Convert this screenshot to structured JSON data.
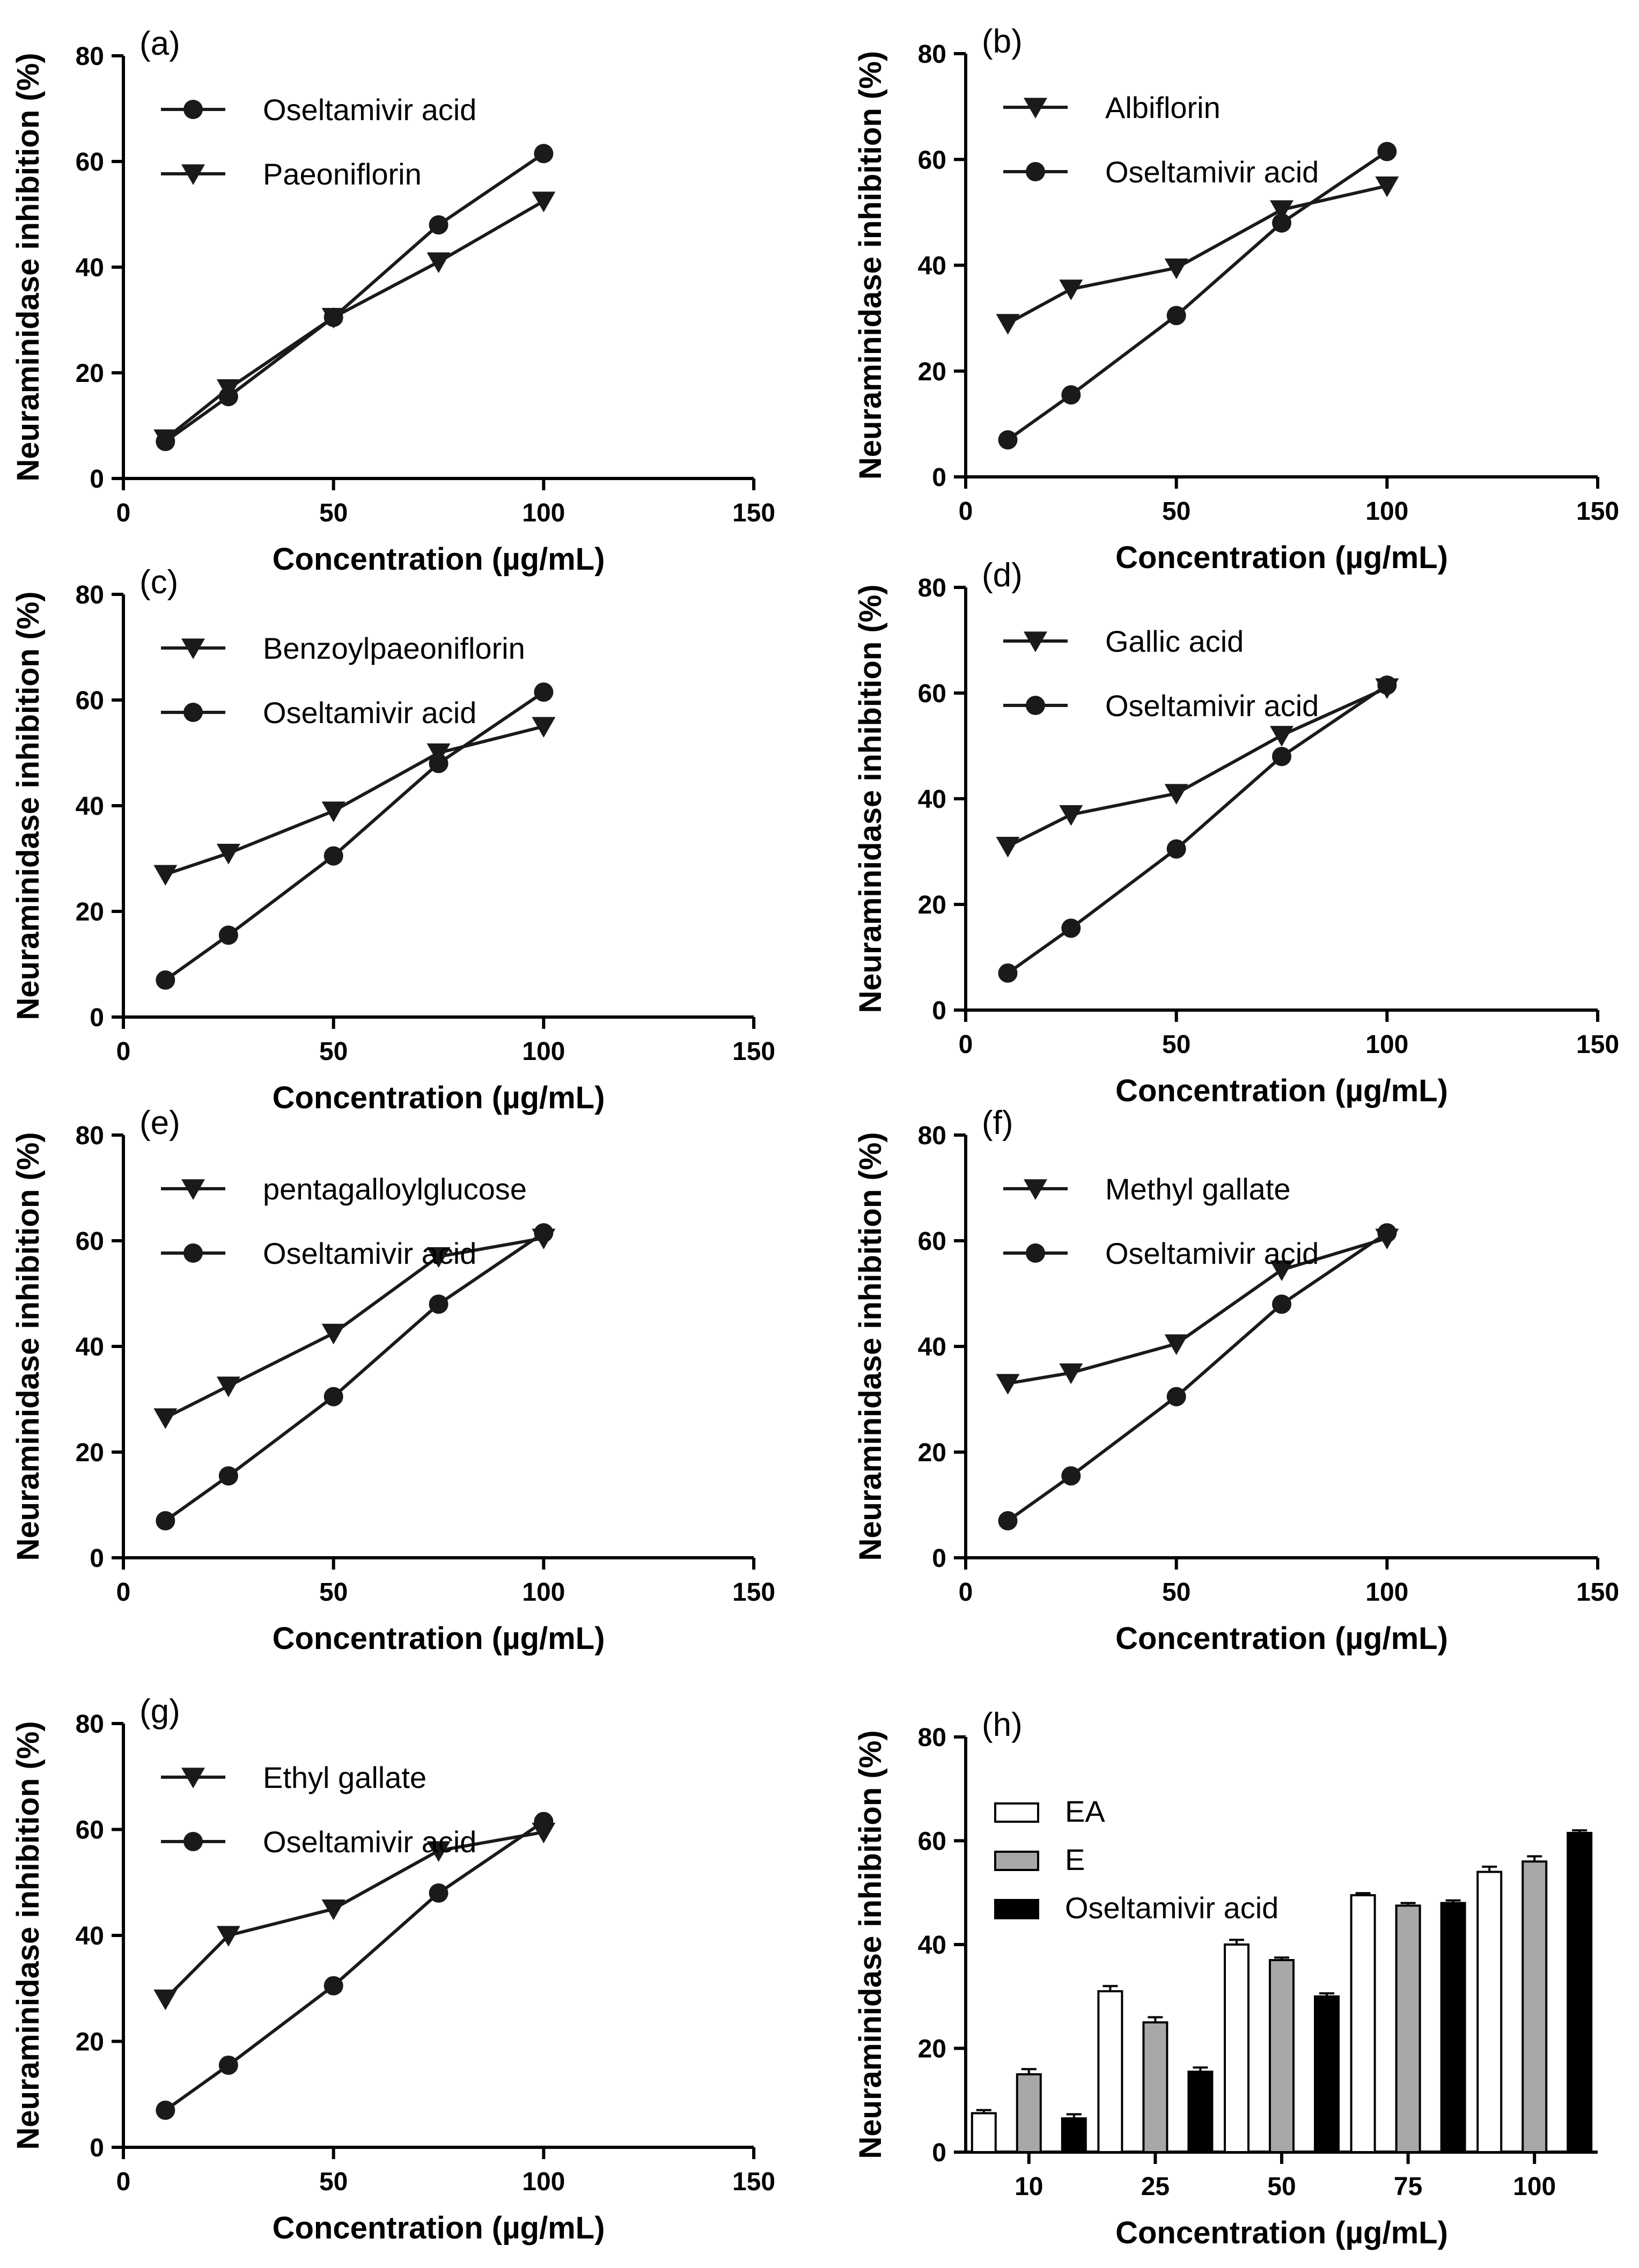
{
  "chart_data": [
    {
      "id": "a",
      "type": "line",
      "panel_label": "(a)",
      "xlabel": "Concentration (µg/mL)",
      "ylabel": "Neuraminidase inhibition (%)",
      "xlim": [
        0,
        150
      ],
      "ylim": [
        0,
        80
      ],
      "xticks": [
        "0",
        "50",
        "100",
        "150"
      ],
      "yticks": [
        "0",
        "20",
        "40",
        "60",
        "80"
      ],
      "x": [
        10,
        25,
        50,
        75,
        100
      ],
      "series": [
        {
          "name": "Oseltamivir acid",
          "marker": "circle",
          "values": [
            7,
            15.5,
            30.5,
            48,
            61.5
          ]
        },
        {
          "name": "Paeoniflorin",
          "marker": "triangle-down",
          "values": [
            7.5,
            17,
            30.5,
            41,
            52.5
          ]
        }
      ]
    },
    {
      "id": "b",
      "type": "line",
      "panel_label": "(b)",
      "xlabel": "Concentration (µg/mL)",
      "ylabel": "Neuraminidase inhibition (%)",
      "xlim": [
        0,
        150
      ],
      "ylim": [
        0,
        80
      ],
      "xticks": [
        "0",
        "50",
        "100",
        "150"
      ],
      "yticks": [
        "0",
        "20",
        "40",
        "60",
        "80"
      ],
      "x": [
        10,
        25,
        50,
        75,
        100
      ],
      "series": [
        {
          "name": "Albiflorin",
          "marker": "triangle-down",
          "values": [
            29,
            35.5,
            39.5,
            50.5,
            55
          ]
        },
        {
          "name": "Oseltamivir acid",
          "marker": "circle",
          "values": [
            7,
            15.5,
            30.5,
            48,
            61.5
          ]
        }
      ]
    },
    {
      "id": "c",
      "type": "line",
      "panel_label": "(c)",
      "xlabel": "Concentration (µg/mL)",
      "ylabel": "Neuraminidase inhibition (%)",
      "xlim": [
        0,
        150
      ],
      "ylim": [
        0,
        80
      ],
      "xticks": [
        "0",
        "50",
        "100",
        "150"
      ],
      "yticks": [
        "0",
        "20",
        "40",
        "60",
        "80"
      ],
      "x": [
        10,
        25,
        50,
        75,
        100
      ],
      "series": [
        {
          "name": "Benzoylpaeoniflorin",
          "marker": "triangle-down",
          "values": [
            27,
            31,
            39,
            50,
            55
          ]
        },
        {
          "name": "Oseltamivir acid",
          "marker": "circle",
          "values": [
            7,
            15.5,
            30.5,
            48,
            61.5
          ]
        }
      ]
    },
    {
      "id": "d",
      "type": "line",
      "panel_label": "(d)",
      "xlabel": "Concentration (µg/mL)",
      "ylabel": "Neuraminidase inhibition (%)",
      "xlim": [
        0,
        150
      ],
      "ylim": [
        0,
        80
      ],
      "xticks": [
        "0",
        "50",
        "100",
        "150"
      ],
      "yticks": [
        "0",
        "20",
        "40",
        "60",
        "80"
      ],
      "x": [
        10,
        25,
        50,
        75,
        100
      ],
      "series": [
        {
          "name": "Gallic acid",
          "marker": "triangle-down",
          "values": [
            31,
            37,
            41,
            52,
            61
          ]
        },
        {
          "name": "Oseltamivir acid",
          "marker": "circle",
          "values": [
            7,
            15.5,
            30.5,
            48,
            61.5
          ]
        }
      ]
    },
    {
      "id": "e",
      "type": "line",
      "panel_label": "(e)",
      "xlabel": "Concentration (µg/mL)",
      "ylabel": "Neuraminidase inhibition (%)",
      "xlim": [
        0,
        150
      ],
      "ylim": [
        0,
        80
      ],
      "xticks": [
        "0",
        "50",
        "100",
        "150"
      ],
      "yticks": [
        "0",
        "20",
        "40",
        "60",
        "80"
      ],
      "x": [
        10,
        25,
        50,
        75,
        100
      ],
      "series": [
        {
          "name": "pentagalloylglucose",
          "marker": "triangle-down",
          "values": [
            26.5,
            32.5,
            42.5,
            57,
            60.5
          ]
        },
        {
          "name": "Oseltamivir acid",
          "marker": "circle",
          "values": [
            7,
            15.5,
            30.5,
            48,
            61.5
          ]
        }
      ]
    },
    {
      "id": "f",
      "type": "line",
      "panel_label": "(f)",
      "xlabel": "Concentration (µg/mL)",
      "ylabel": "Neuraminidase inhibition (%)",
      "xlim": [
        0,
        150
      ],
      "ylim": [
        0,
        80
      ],
      "xticks": [
        "0",
        "50",
        "100",
        "150"
      ],
      "yticks": [
        "0",
        "20",
        "40",
        "60",
        "80"
      ],
      "x": [
        10,
        25,
        50,
        75,
        100
      ],
      "series": [
        {
          "name": "Methyl gallate",
          "marker": "triangle-down",
          "values": [
            33,
            35,
            40.5,
            54.5,
            60.5
          ]
        },
        {
          "name": "Oseltamivir acid",
          "marker": "circle",
          "values": [
            7,
            15.5,
            30.5,
            48,
            61.5
          ]
        }
      ]
    },
    {
      "id": "g",
      "type": "line",
      "panel_label": "(g)",
      "xlabel": "Concentration (µg/mL)",
      "ylabel": "Neuraminidase inhibition (%)",
      "xlim": [
        0,
        150
      ],
      "ylim": [
        0,
        80
      ],
      "xticks": [
        "0",
        "50",
        "100",
        "150"
      ],
      "yticks": [
        "0",
        "20",
        "40",
        "60",
        "80"
      ],
      "x": [
        10,
        25,
        50,
        75,
        100
      ],
      "series": [
        {
          "name": "Ethyl gallate",
          "marker": "triangle-down",
          "values": [
            28,
            40,
            45,
            56,
            59.5
          ]
        },
        {
          "name": "Oseltamivir acid",
          "marker": "circle",
          "values": [
            7,
            15.5,
            30.5,
            48,
            61.5
          ]
        }
      ]
    },
    {
      "id": "h",
      "type": "bar",
      "panel_label": "(h)",
      "xlabel": "Concentration (µg/mL)",
      "ylabel": "Neuraminidase inhibition (%)",
      "ylim": [
        0,
        80
      ],
      "yticks": [
        "0",
        "20",
        "40",
        "60",
        "80"
      ],
      "categories": [
        "10",
        "25",
        "50",
        "75",
        "100"
      ],
      "series": [
        {
          "name": "EA",
          "fill": "#ffffff",
          "values": [
            7.5,
            31,
            40,
            49.5,
            54
          ],
          "errors": [
            0.6,
            1.0,
            0.9,
            0.4,
            1.0
          ]
        },
        {
          "name": "E",
          "fill": "#a8a8a8",
          "values": [
            15,
            25,
            37,
            47.5,
            56
          ],
          "errors": [
            1.0,
            1.0,
            0.5,
            0.5,
            1.0
          ]
        },
        {
          "name": "Oseltamivir acid",
          "fill": "#000000",
          "values": [
            6.5,
            15.5,
            30,
            48,
            61.5
          ],
          "errors": [
            0.8,
            0.8,
            0.6,
            0.5,
            0.5
          ]
        }
      ]
    }
  ]
}
